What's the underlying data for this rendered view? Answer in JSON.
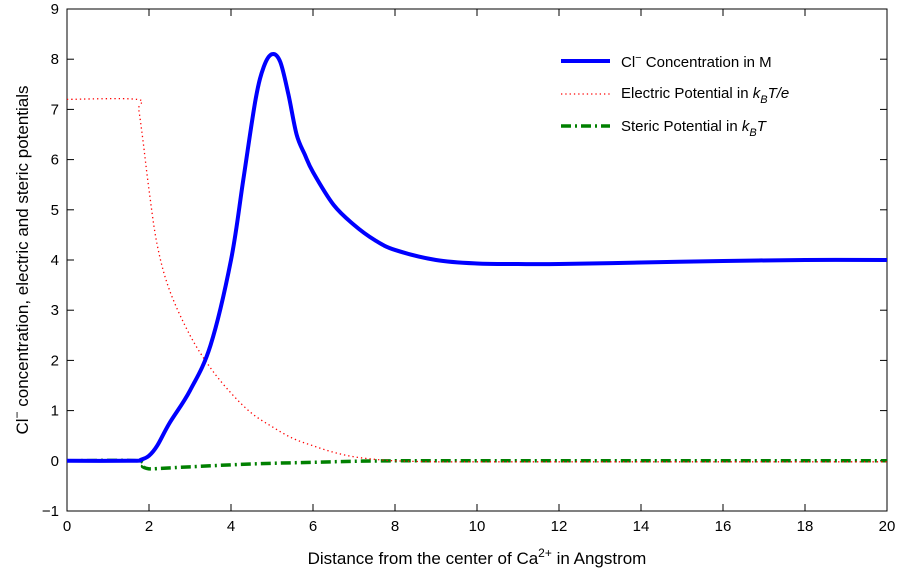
{
  "chart_data": {
    "type": "line",
    "xlabel": {
      "main": "Distance from the center of Ca",
      "sup": "2+",
      "rest": " in Angstrom"
    },
    "ylabel": {
      "pre": "Cl",
      "sup": "−",
      "rest": " concentration, electric and steric potentials"
    },
    "xlim": [
      0,
      20
    ],
    "ylim": [
      -1,
      9
    ],
    "xticks": [
      0,
      2,
      4,
      6,
      8,
      10,
      12,
      14,
      16,
      18,
      20
    ],
    "yticks": [
      -1,
      0,
      1,
      2,
      3,
      4,
      5,
      6,
      7,
      8,
      9
    ],
    "grid": false,
    "legend_position": "top-right",
    "series": [
      {
        "name": "Cl− Concentration in M",
        "legend": {
          "pre": "Cl",
          "sup": "−",
          "rest": " Concentration in M"
        },
        "color": "#0000ff",
        "style": "solid",
        "x": [
          0,
          1.6,
          1.8,
          2.0,
          2.2,
          2.5,
          3.0,
          3.5,
          4.0,
          4.3,
          4.6,
          4.8,
          5.0,
          5.2,
          5.4,
          5.6,
          5.8,
          6.0,
          6.5,
          7.0,
          7.5,
          8.0,
          9.0,
          10.0,
          11.0,
          12.0,
          14.0,
          16.0,
          18.0,
          20.0
        ],
        "y": [
          0,
          0,
          0.02,
          0.1,
          0.3,
          0.75,
          1.4,
          2.3,
          4.0,
          5.6,
          7.2,
          7.85,
          8.1,
          7.95,
          7.3,
          6.5,
          6.1,
          5.75,
          5.1,
          4.7,
          4.4,
          4.2,
          4.0,
          3.93,
          3.92,
          3.92,
          3.95,
          3.98,
          4.0,
          4.0
        ]
      },
      {
        "name": "Electric Potential in kBT/e",
        "legend": {
          "pre": "Electric Potential in ",
          "k": "k",
          "sub": "B",
          "rest": "T/e"
        },
        "color": "#ff0000",
        "style": "dotted",
        "x": [
          0,
          1.7,
          1.75,
          1.85,
          2.0,
          2.2,
          2.5,
          3.0,
          3.5,
          4.0,
          4.5,
          5.0,
          5.5,
          6.0,
          6.5,
          7.0,
          7.5,
          8.0,
          9.0,
          10.0,
          12.0,
          14.0,
          16.0,
          18.0,
          20.0
        ],
        "y": [
          7.2,
          7.2,
          7.0,
          6.4,
          5.4,
          4.3,
          3.4,
          2.5,
          1.85,
          1.35,
          0.95,
          0.68,
          0.45,
          0.3,
          0.17,
          0.08,
          0.03,
          0.0,
          -0.02,
          -0.02,
          -0.02,
          -0.02,
          -0.02,
          -0.02,
          -0.02
        ]
      },
      {
        "name": "Steric Potential in kBT",
        "legend": {
          "pre": "Steric Potential in ",
          "k": "k",
          "sub": "B",
          "rest": "T"
        },
        "color": "#008000",
        "style": "dashdot",
        "x": [
          0,
          1.7,
          1.85,
          2.0,
          2.3,
          3.0,
          4.0,
          5.0,
          6.0,
          7.0,
          8.0,
          9.0,
          10.0,
          12.0,
          14.0,
          16.0,
          18.0,
          20.0
        ],
        "y": [
          0,
          0,
          -0.12,
          -0.16,
          -0.15,
          -0.12,
          -0.08,
          -0.05,
          -0.03,
          -0.01,
          0.0,
          0.0,
          0.0,
          0.0,
          0.0,
          0.0,
          0.0,
          0.0
        ]
      }
    ]
  }
}
